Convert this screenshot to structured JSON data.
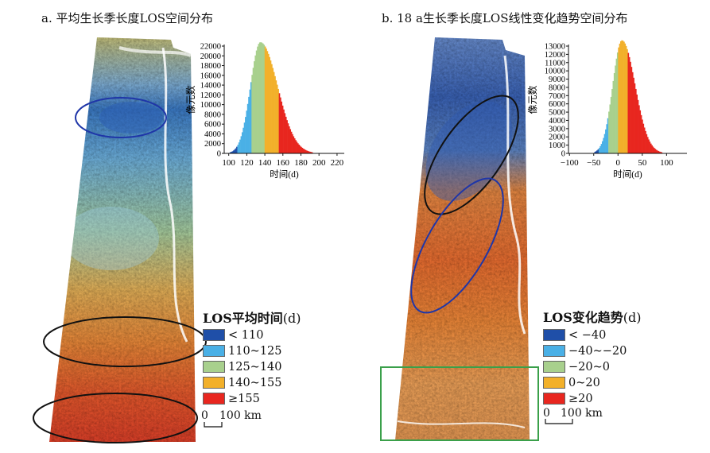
{
  "panel_a": {
    "title": "a. 平均生长季长度LOS空间分布",
    "legend_title": "LOS平均时间",
    "legend_unit": "(d)",
    "legend_items": [
      {
        "label": "< 110",
        "color": "#1f4fa8"
      },
      {
        "label": "110~125",
        "color": "#4ab0e6"
      },
      {
        "label": "125~140",
        "color": "#a8d08d"
      },
      {
        "label": "140~155",
        "color": "#f2b02a"
      },
      {
        "label": "≥155",
        "color": "#e8261f"
      }
    ],
    "scale_bar": {
      "start": "0",
      "end": "100 km"
    }
  },
  "panel_b": {
    "title": "b. 18 a生长季长度LOS线性变化趋势空间分布",
    "legend_title": "LOS变化趋势",
    "legend_unit": "(d)",
    "legend_items": [
      {
        "label": "< −40",
        "color": "#1f4fa8"
      },
      {
        "label": "−40~−20",
        "color": "#4ab0e6"
      },
      {
        "label": "−20~0",
        "color": "#a8d08d"
      },
      {
        "label": "0~20",
        "color": "#f2b02a"
      },
      {
        "label": "≥20",
        "color": "#e8261f"
      }
    ],
    "scale_bar": {
      "start": "0",
      "end": "100 km"
    }
  },
  "chart_data": [
    {
      "type": "bar",
      "xlabel": "时间(d)",
      "ylabel": "像元数",
      "xlim": [
        95,
        228
      ],
      "ylim": [
        0,
        22000
      ],
      "x_ticks": [
        "100",
        "120",
        "140",
        "160",
        "180",
        "200",
        "220"
      ],
      "y_ticks": [
        "0",
        "2000",
        "4000",
        "6000",
        "8000",
        "10000",
        "12000",
        "14000",
        "16000",
        "18000",
        "20000",
        "22000"
      ],
      "peak": {
        "x": 135,
        "y": 22800
      },
      "class_breaks": [
        110,
        125,
        140,
        155
      ],
      "class_colors": [
        "#1f4fa8",
        "#4ab0e6",
        "#a8d08d",
        "#f2b02a",
        "#e8261f"
      ]
    },
    {
      "type": "bar",
      "xlabel": "时间(d)",
      "ylabel": "像元数",
      "xlim": [
        -102,
        142
      ],
      "ylim": [
        0,
        13000
      ],
      "x_ticks": [
        "−100",
        "−50",
        "0",
        "50",
        "100"
      ],
      "y_ticks": [
        "0",
        "1000",
        "2000",
        "3000",
        "4000",
        "5000",
        "6000",
        "7000",
        "8000",
        "9000",
        "10000",
        "11000",
        "12000",
        "13000"
      ],
      "peak": {
        "x": 8,
        "y": 13700
      },
      "class_breaks": [
        -40,
        -20,
        0,
        20
      ],
      "class_colors": [
        "#1f4fa8",
        "#4ab0e6",
        "#a8d08d",
        "#f2b02a",
        "#e8261f"
      ]
    }
  ]
}
